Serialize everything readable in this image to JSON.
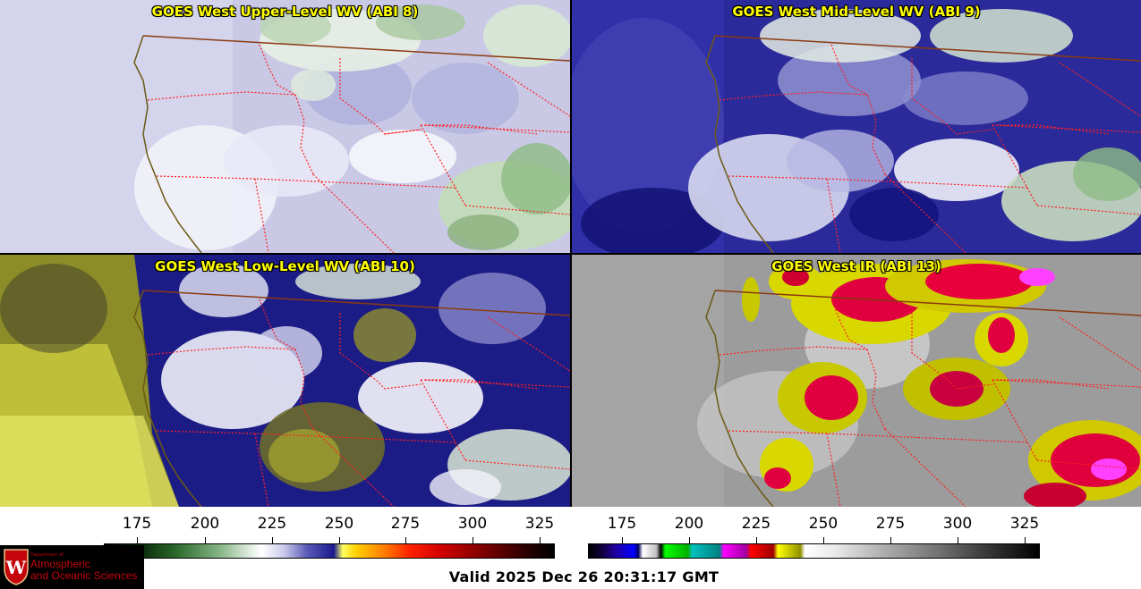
{
  "panels": [
    {
      "title": "GOES West Upper-Level WV (ABI 8)"
    },
    {
      "title": "GOES West Mid-Level WV (ABI 9)"
    },
    {
      "title": "GOES West Low-Level WV (ABI 10)"
    },
    {
      "title": "GOES West IR (ABI 13)"
    }
  ],
  "colorbars": [
    {
      "ticks": [
        "175",
        "200",
        "225",
        "250",
        "275",
        "300",
        "325"
      ]
    },
    {
      "ticks": [
        "175",
        "200",
        "225",
        "250",
        "275",
        "300",
        "325"
      ]
    }
  ],
  "logo": {
    "line1": "Department of",
    "line2": "Atmospheric",
    "line3": "and Oceanic Sciences",
    "crest_letter": "W"
  },
  "footer": {
    "valid_time": "Valid 2025 Dec 26 20:31:17 GMT"
  },
  "colors": {
    "coast_line": "#6b5a14",
    "state_border": "#ff2020",
    "country_border": "#8a3a10",
    "title_text": "#ffff00"
  }
}
